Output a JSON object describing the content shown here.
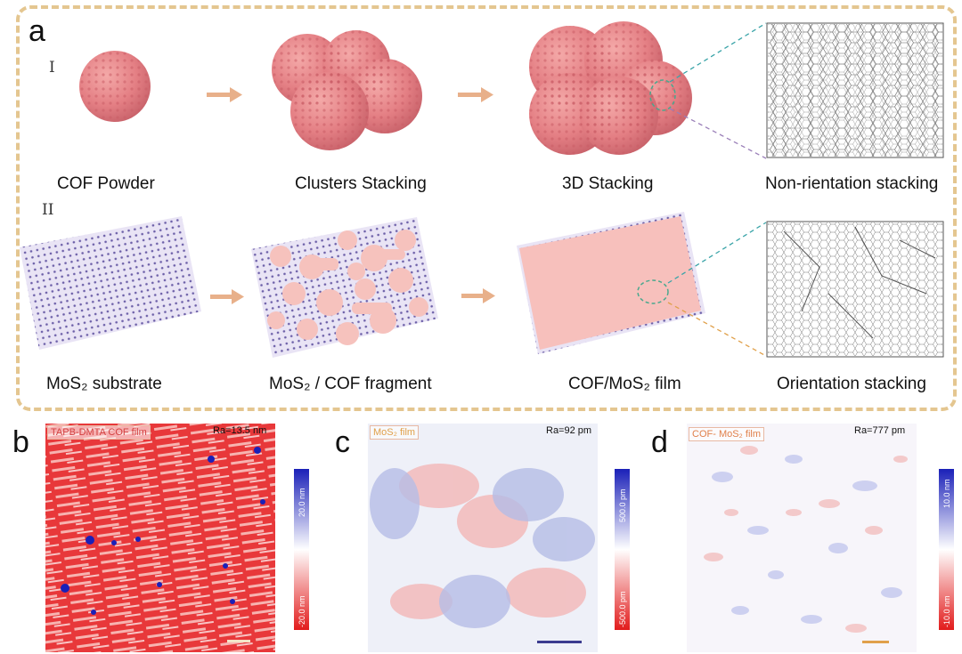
{
  "panel_a": {
    "letter": "a",
    "row_labels": [
      "I",
      "II"
    ],
    "row1_captions": [
      "COF Powder",
      "Clusters Stacking",
      "3D Stacking",
      "Non-rientation stacking"
    ],
    "row2_captions": [
      "MoS₂ substrate",
      "MoS₂ / COF fragment",
      "COF/MoS₂ film",
      "Orientation stacking"
    ]
  },
  "afm_panels": [
    {
      "letter": "b",
      "label": "TAPB-DMTA COF film",
      "ra": "Ra=13.5 nm",
      "cbar_top": "20.0 nm",
      "cbar_bottom": "-20.0 nm",
      "scale_color": "#f4e6c8"
    },
    {
      "letter": "c",
      "label": "MoS₂ film",
      "ra": "Ra=92 pm",
      "cbar_top": "500.0 pm",
      "cbar_bottom": "-500.0 pm",
      "scale_color": "#3b3b8f"
    },
    {
      "letter": "d",
      "label": "COF- MoS₂ film",
      "ra": "Ra=777 pm",
      "cbar_top": "10.0 nm",
      "cbar_bottom": "-10.0 nm",
      "scale_color": "#e0a04a"
    }
  ],
  "colors": {
    "frame": "#e4c690",
    "arrow": "#e8b08a",
    "sphere": "#e5858a",
    "substrate": "#6c5fa8",
    "cof_pink": "#f6c2bd",
    "cbar_blue": "#1a20b8",
    "cbar_red": "#e21b1b"
  }
}
